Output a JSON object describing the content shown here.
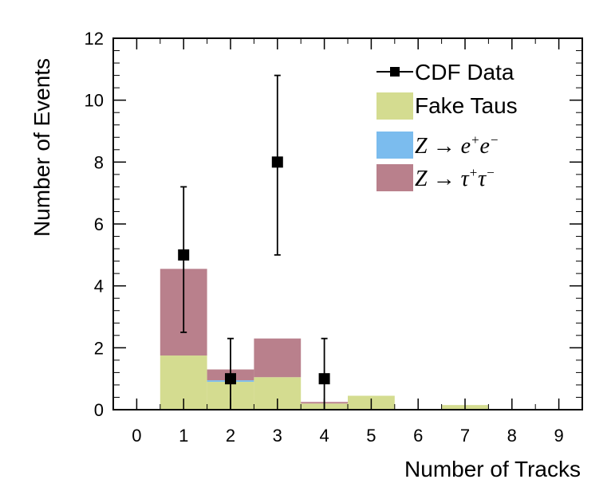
{
  "chart_data": {
    "type": "bar",
    "xlabel": "Number of Tracks",
    "ylabel": "Number of Events",
    "xlim": [
      -0.5,
      9.5
    ],
    "ylim": [
      0,
      12
    ],
    "x_ticks": [
      0,
      1,
      2,
      3,
      4,
      5,
      6,
      7,
      8,
      9
    ],
    "y_ticks": [
      0,
      2,
      4,
      6,
      8,
      10,
      12
    ],
    "stacked": true,
    "bins": [
      0,
      1,
      2,
      3,
      4,
      5,
      6,
      7,
      8,
      9
    ],
    "series": [
      {
        "name": "Fake Taus",
        "color": "#d4dc90",
        "values": [
          0,
          1.75,
          0.9,
          1.05,
          0.2,
          0.45,
          0,
          0.15,
          0,
          0
        ]
      },
      {
        "name": "Z → e⁺e⁻",
        "color": "#7bbcee",
        "values": [
          0,
          0,
          0.05,
          0,
          0,
          0,
          0,
          0,
          0,
          0
        ]
      },
      {
        "name": "Z → τ⁺τ⁻",
        "color": "#b9808c",
        "values": [
          0,
          2.8,
          0.35,
          1.25,
          0.05,
          0,
          0,
          0,
          0,
          0
        ]
      }
    ],
    "data_points": {
      "name": "CDF Data",
      "x": [
        1,
        2,
        3,
        4
      ],
      "y": [
        5,
        1,
        8,
        1
      ],
      "err_low": [
        2.5,
        1,
        3,
        1
      ],
      "err_high": [
        2.2,
        1.3,
        2.8,
        1.3
      ]
    },
    "legend": {
      "placement": "top-right",
      "entries": [
        {
          "label": "CDF Data",
          "kind": "marker"
        },
        {
          "label": "Fake Taus",
          "kind": "box",
          "color": "#d4dc90"
        },
        {
          "label_prefix": "Z → e",
          "sup1": "+",
          "mid": "e",
          "sup2": "−",
          "kind": "box",
          "color": "#7bbcee"
        },
        {
          "label_prefix": "Z → τ",
          "sup1": "+",
          "mid": "τ",
          "sup2": "−",
          "kind": "box",
          "color": "#b9808c"
        }
      ]
    }
  }
}
